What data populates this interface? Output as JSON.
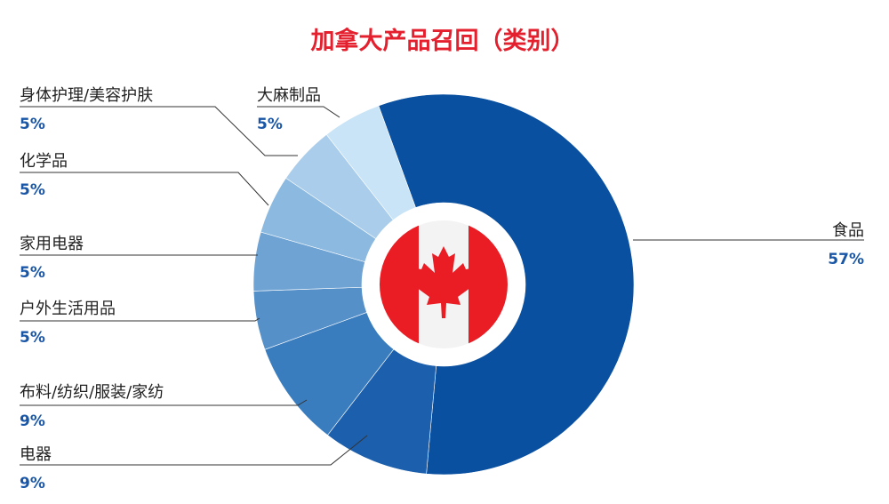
{
  "chart_data": {
    "type": "pie",
    "title": "加拿大产品召回（类别）",
    "categories": [
      "食品",
      "电器",
      "布料/纺织/服装/家纺",
      "户外生活用品",
      "家用电器",
      "化学品",
      "身体护理/美容护肤",
      "大麻制品"
    ],
    "values": [
      57,
      9,
      9,
      5,
      5,
      5,
      5,
      5
    ],
    "value_labels": [
      "57%",
      "9%",
      "9%",
      "5%",
      "5%",
      "5%",
      "5%",
      "5%"
    ],
    "legend": "none",
    "donut": true,
    "center_image": "canada-flag"
  },
  "colors": {
    "title": "#e5202e",
    "percent_text": "#1a56a6",
    "slices": [
      "#0a50a0",
      "#1c5fac",
      "#3a7dbf",
      "#5690c9",
      "#6fa3d3",
      "#8bb9e0",
      "#a9cdea",
      "#c9e4f6"
    ],
    "flag_red": "#ea1c24",
    "flag_white": "#f3f3f3"
  }
}
